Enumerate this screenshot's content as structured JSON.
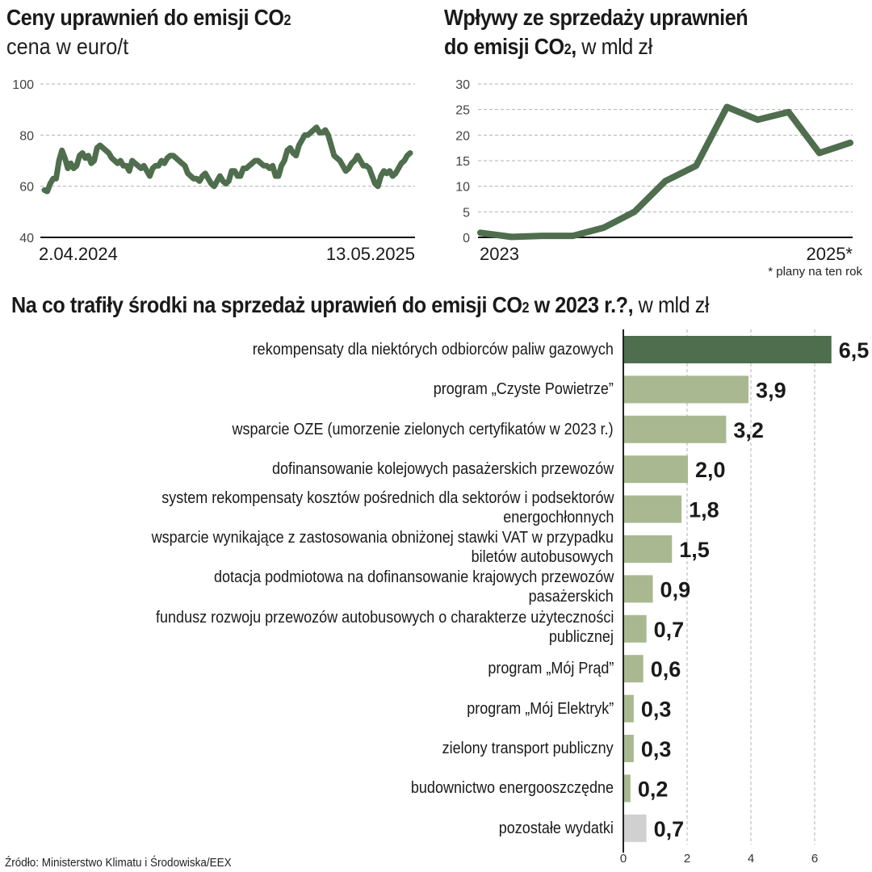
{
  "colors": {
    "dark_green": "#4f6e4e",
    "light_green": "#a9b891",
    "gray": "#d0d0d0",
    "grid": "#b0b0b0",
    "text": "#1a1a1a"
  },
  "chart_data": [
    {
      "type": "line",
      "id": "prices",
      "title": "Ceny uprawnień do emisji CO2",
      "subtitle": "cena w euro/t",
      "xlabel": "",
      "ylabel": "cena w euro/t",
      "ylim": [
        40,
        100
      ],
      "yticks": [
        40,
        60,
        80,
        100
      ],
      "ytick_labels": [
        "40",
        "60",
        "80",
        "100"
      ],
      "xtick_labels": [
        "2.04.2024",
        "13.05.2025"
      ],
      "x_start": "2.04.2024",
      "x_end": "13.05.2025",
      "grid": true,
      "values": [
        58.5,
        58,
        61,
        63,
        63,
        70,
        74,
        71,
        67,
        69,
        67,
        68,
        72,
        73,
        71,
        72,
        69,
        70,
        75,
        76,
        75,
        74,
        73,
        71,
        70,
        69,
        70,
        68,
        68,
        66,
        70,
        69,
        68,
        67,
        68,
        66,
        64,
        67,
        68,
        68,
        70,
        69,
        71,
        72,
        72,
        71,
        70,
        69,
        68,
        65,
        64,
        63,
        63,
        62,
        64,
        65,
        63,
        61,
        60,
        62,
        64,
        62,
        61,
        62,
        66,
        66,
        64,
        64,
        67,
        67,
        68,
        69,
        70,
        70,
        69,
        68,
        68,
        67,
        68,
        64,
        64,
        68,
        70,
        74,
        75,
        73,
        72,
        76,
        78,
        80,
        80,
        81,
        82,
        83,
        81,
        81,
        82,
        80,
        76,
        72,
        71,
        70,
        68,
        66,
        67,
        69,
        70,
        72,
        70,
        68,
        68,
        67,
        64,
        61,
        60,
        64,
        66,
        65,
        66,
        64,
        65,
        67,
        69,
        70,
        72,
        73
      ]
    },
    {
      "type": "line",
      "id": "revenue",
      "title": "Wpływy ze sprzedaży uprawnień do emisji CO2",
      "unit": "w mld zł",
      "ylim": [
        0,
        30
      ],
      "yticks": [
        0,
        5,
        10,
        15,
        20,
        25,
        30
      ],
      "ytick_labels": [
        "0",
        "5",
        "10",
        "15",
        "20",
        "25",
        "30"
      ],
      "xtick_labels": [
        "2023",
        "2025*"
      ],
      "grid": true,
      "values": [
        0.9,
        0.1,
        0.3,
        0.3,
        1.9,
        5.0,
        11.0,
        14.0,
        25.5,
        23.0,
        24.5,
        16.5,
        18.5
      ],
      "footnote": "* plany na ten rok"
    },
    {
      "type": "bar",
      "id": "allocation",
      "orientation": "horizontal",
      "title": "Na co trafiły środki na sprzedaż uprawień do emisji CO2 w 2023 r.?",
      "unit": "w mld zł",
      "xlim": [
        0,
        7
      ],
      "xticks": [
        0,
        2,
        4,
        6
      ],
      "xtick_labels": [
        "0",
        "2",
        "4",
        "6"
      ],
      "grid": true,
      "categories": [
        [
          "rekompensaty dla niektórych odbiorców paliw gazowych"
        ],
        [
          "program „Czyste Powietrze”"
        ],
        [
          "wsparcie OZE (umorzenie zielonych certyfikatów w 2023 r.)"
        ],
        [
          "dofinansowanie kolejowych pasażerskich przewozów"
        ],
        [
          "system rekompensaty kosztów pośrednich dla sektorów i podsektorów",
          "energochłonnych"
        ],
        [
          "wsparcie wynikające z zastosowania obniżonej stawki VAT w przypadku",
          "biletów autobusowych"
        ],
        [
          "dotacja podmiotowa na dofinansowanie krajowych przewozów",
          "pasażerskich"
        ],
        [
          "fundusz rozwoju przewozów autobusowych o charakterze użyteczności",
          "publicznej"
        ],
        [
          "program „Mój Prąd”"
        ],
        [
          "program „Mój Elektryk”"
        ],
        [
          "zielony transport publiczny"
        ],
        [
          "budownictwo energooszczędne"
        ],
        [
          "pozostałe wydatki"
        ]
      ],
      "values": [
        6.5,
        3.9,
        3.2,
        2.0,
        1.8,
        1.5,
        0.9,
        0.7,
        0.6,
        0.3,
        0.3,
        0.2,
        0.7
      ],
      "value_labels": [
        "6,5",
        "3,9",
        "3,2",
        "2,0",
        "1,8",
        "1,5",
        "0,9",
        "0,7",
        "0,6",
        "0,3",
        "0,3",
        "0,2",
        "0,7"
      ],
      "bar_styles": [
        "dark",
        "light",
        "light",
        "light",
        "light",
        "light",
        "light",
        "light",
        "light",
        "light",
        "light",
        "light",
        "gray"
      ]
    }
  ],
  "headers": {
    "left_title": "Ceny uprawnień do emisji CO",
    "left_title_sub": "2",
    "left_subtitle": "cena w euro/t",
    "right_title_line1": "Wpływy ze sprzedaży uprawnień",
    "right_title_line2": "do emisji CO",
    "right_title_sub": "2",
    "right_title_comma": ",",
    "right_unit": " w mld zł",
    "bottom_title": "Na co trafiły środki na sprzedaż uprawień do emisji CO",
    "bottom_title_sub": "2",
    "bottom_title_rest": " w 2023 r.?,",
    "bottom_unit": " w mld zł"
  },
  "footnote": "* plany na ten rok",
  "source": "Źródło: Ministerstwo Klimatu i Środowiska/EEX"
}
